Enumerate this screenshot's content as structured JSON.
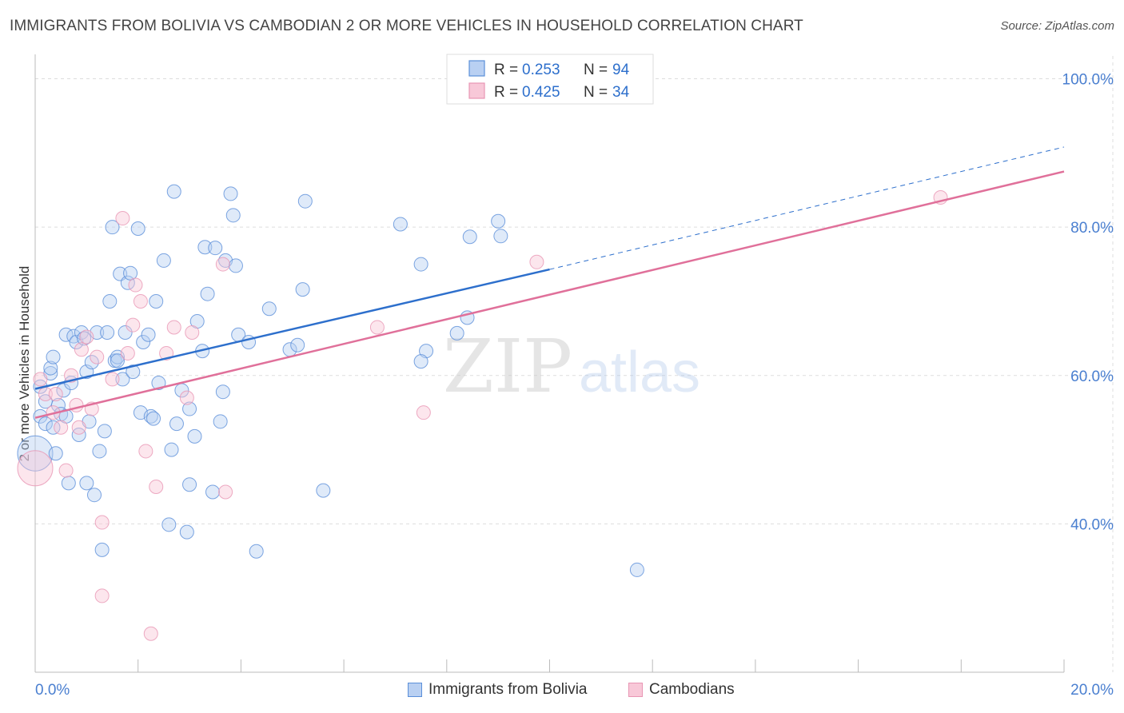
{
  "header": {
    "title": "IMMIGRANTS FROM BOLIVIA VS CAMBODIAN 2 OR MORE VEHICLES IN HOUSEHOLD CORRELATION CHART",
    "source": "Source: ZipAtlas.com"
  },
  "watermark": {
    "zip": "ZIP",
    "atlas": "atlas"
  },
  "legend": {
    "r_label": "R =",
    "n_label": "N =",
    "entries": [
      {
        "r": "0.253",
        "n": "94"
      },
      {
        "r": "0.425",
        "n": "34"
      }
    ]
  },
  "bottom_legend": [
    "Immigrants from Bolivia",
    "Cambodians"
  ],
  "chart_data": {
    "type": "scatter",
    "title": "IMMIGRANTS FROM BOLIVIA VS CAMBODIAN 2 OR MORE VEHICLES IN HOUSEHOLD CORRELATION CHART",
    "xlabel": "",
    "ylabel": "2 or more Vehicles in Household",
    "xlim": [
      0,
      20
    ],
    "ylim": [
      20,
      102
    ],
    "x_tick_labels": [
      "0.0%",
      "20.0%"
    ],
    "y_ticks": [
      40,
      60,
      80,
      100
    ],
    "y_tick_labels": [
      "40.0%",
      "60.0%",
      "80.0%",
      "100.0%"
    ],
    "grid": true,
    "colors": {
      "bolivia": "#5b8fd9",
      "bolivia_line": "#2d6fcc",
      "cambodian": "#e896b4",
      "cambodian_line": "#e0709a",
      "tick_text": "#4a7fd0"
    },
    "series": [
      {
        "name": "Immigrants from Bolivia",
        "r": 0.253,
        "n": 94,
        "trend": {
          "x0": 0,
          "y0": 58.2,
          "x1": 10,
          "y1": 74.3,
          "dash_x_end": 20,
          "dash_y_end": 90.8
        },
        "points": [
          [
            0.0,
            49.5,
            "big"
          ],
          [
            0.1,
            58.5
          ],
          [
            0.1,
            54.5
          ],
          [
            0.2,
            56.5
          ],
          [
            0.2,
            53.5
          ],
          [
            0.3,
            60.3
          ],
          [
            0.3,
            61.0
          ],
          [
            0.35,
            62.5
          ],
          [
            0.35,
            53.0
          ],
          [
            0.4,
            49.5
          ],
          [
            0.45,
            56.0
          ],
          [
            0.5,
            54.8
          ],
          [
            0.55,
            58.0
          ],
          [
            0.6,
            65.5
          ],
          [
            0.6,
            54.5
          ],
          [
            0.65,
            45.5
          ],
          [
            0.7,
            59.0
          ],
          [
            0.75,
            65.3
          ],
          [
            0.8,
            64.5
          ],
          [
            0.85,
            52.0
          ],
          [
            0.9,
            65.8
          ],
          [
            0.95,
            65.0
          ],
          [
            1.0,
            60.5
          ],
          [
            1.0,
            45.5
          ],
          [
            1.05,
            53.8
          ],
          [
            1.1,
            61.8
          ],
          [
            1.15,
            43.9
          ],
          [
            1.2,
            65.8
          ],
          [
            1.25,
            49.8
          ],
          [
            1.3,
            36.5
          ],
          [
            1.35,
            52.5
          ],
          [
            1.4,
            65.8
          ],
          [
            1.45,
            70.0
          ],
          [
            1.5,
            80.0
          ],
          [
            1.55,
            62.0
          ],
          [
            1.6,
            62.5
          ],
          [
            1.65,
            73.7
          ],
          [
            1.7,
            59.5
          ],
          [
            1.75,
            65.8
          ],
          [
            1.8,
            72.5
          ],
          [
            1.85,
            73.8
          ],
          [
            1.9,
            60.5
          ],
          [
            2.0,
            79.8
          ],
          [
            2.05,
            55.0
          ],
          [
            2.1,
            64.5
          ],
          [
            2.2,
            65.5
          ],
          [
            2.25,
            54.5
          ],
          [
            2.35,
            70.0
          ],
          [
            2.4,
            59.0
          ],
          [
            2.5,
            75.5
          ],
          [
            2.6,
            39.9
          ],
          [
            2.65,
            50.0
          ],
          [
            2.7,
            84.8
          ],
          [
            2.75,
            53.5
          ],
          [
            2.85,
            58.0
          ],
          [
            2.95,
            38.9
          ],
          [
            3.0,
            45.3
          ],
          [
            3.0,
            55.5
          ],
          [
            3.1,
            51.8
          ],
          [
            3.15,
            67.3
          ],
          [
            3.25,
            63.3
          ],
          [
            3.3,
            77.3
          ],
          [
            3.35,
            71.0
          ],
          [
            3.45,
            44.3
          ],
          [
            3.5,
            77.2
          ],
          [
            3.6,
            53.8
          ],
          [
            3.65,
            57.8
          ],
          [
            3.7,
            75.5
          ],
          [
            3.8,
            84.5
          ],
          [
            3.85,
            81.6
          ],
          [
            3.9,
            74.8
          ],
          [
            3.95,
            65.5
          ],
          [
            4.15,
            64.5
          ],
          [
            4.3,
            36.3
          ],
          [
            4.55,
            69.0
          ],
          [
            4.95,
            63.5
          ],
          [
            5.2,
            71.6
          ],
          [
            5.25,
            83.5
          ],
          [
            5.6,
            44.5
          ],
          [
            7.1,
            80.4
          ],
          [
            7.5,
            75.0
          ],
          [
            7.6,
            63.3
          ],
          [
            7.5,
            61.9
          ],
          [
            8.2,
            65.7
          ],
          [
            8.4,
            67.8
          ],
          [
            8.45,
            78.7
          ],
          [
            9.0,
            80.8
          ],
          [
            9.05,
            78.8
          ],
          [
            11.7,
            33.8
          ],
          [
            5.1,
            64.1
          ],
          [
            2.3,
            54.2
          ],
          [
            1.6,
            62.0
          ]
        ]
      },
      {
        "name": "Cambodians",
        "r": 0.425,
        "n": 34,
        "trend": {
          "x0": 0,
          "y0": 54.3,
          "x1": 20,
          "y1": 87.5
        },
        "points": [
          [
            0.0,
            47.5,
            "big"
          ],
          [
            0.1,
            59.5
          ],
          [
            0.2,
            57.5
          ],
          [
            0.35,
            55.0
          ],
          [
            0.4,
            57.5
          ],
          [
            0.5,
            53.0
          ],
          [
            0.6,
            47.2
          ],
          [
            0.7,
            60.0
          ],
          [
            0.8,
            56.0
          ],
          [
            0.85,
            53.0
          ],
          [
            0.9,
            63.5
          ],
          [
            1.0,
            65.2
          ],
          [
            1.1,
            55.5
          ],
          [
            1.2,
            62.5
          ],
          [
            1.3,
            30.3
          ],
          [
            1.3,
            40.2
          ],
          [
            1.5,
            59.5
          ],
          [
            1.7,
            81.2
          ],
          [
            1.8,
            63.0
          ],
          [
            1.9,
            66.8
          ],
          [
            1.95,
            72.2
          ],
          [
            2.05,
            70.0
          ],
          [
            2.15,
            49.8
          ],
          [
            2.25,
            25.2
          ],
          [
            2.35,
            45.0
          ],
          [
            2.55,
            63.0
          ],
          [
            2.7,
            66.5
          ],
          [
            2.95,
            57.0
          ],
          [
            3.05,
            65.8
          ],
          [
            3.65,
            75.0
          ],
          [
            3.7,
            44.3
          ],
          [
            6.65,
            66.5
          ],
          [
            7.55,
            55.0
          ],
          [
            9.75,
            75.3
          ],
          [
            17.6,
            84.0
          ]
        ]
      }
    ]
  }
}
